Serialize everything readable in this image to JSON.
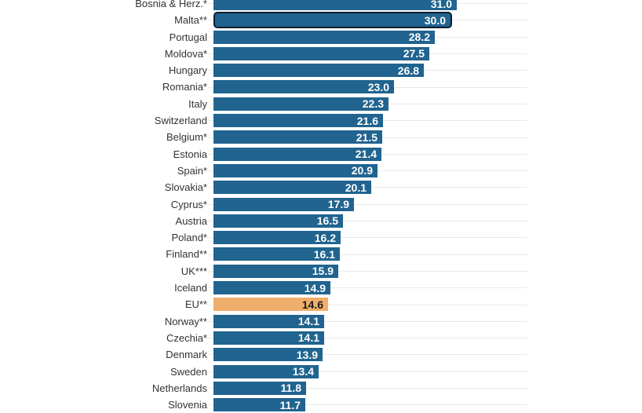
{
  "chart_data": {
    "type": "bar",
    "orientation": "horizontal",
    "title": "",
    "xlabel": "",
    "ylabel": "",
    "legend": "none",
    "grid": "faint horizontal line at each row center",
    "clipping": "first row (Bosnia & Herz.*) clipped at top edge, last row (Slovenia) clipped at bottom edge",
    "categories": [
      "Bosnia & Herz.*",
      "Malta**",
      "Portugal",
      "Moldova*",
      "Hungary",
      "Romania*",
      "Italy",
      "Switzerland",
      "Belgium*",
      "Estonia",
      "Spain*",
      "Slovakia*",
      "Cyprus*",
      "Austria",
      "Poland*",
      "Finland**",
      "UK***",
      "Iceland",
      "EU**",
      "Norway**",
      "Czechia*",
      "Denmark",
      "Sweden",
      "Netherlands",
      "Slovenia"
    ],
    "values": [
      31.0,
      30.0,
      28.2,
      27.5,
      26.8,
      23.0,
      22.3,
      21.6,
      21.5,
      21.4,
      20.9,
      20.1,
      17.9,
      16.5,
      16.2,
      16.1,
      15.9,
      14.9,
      14.6,
      14.1,
      14.1,
      13.9,
      13.4,
      11.8,
      11.7
    ],
    "value_labels": [
      "31.0",
      "30.0",
      "28.2",
      "27.5",
      "26.8",
      "23.0",
      "22.3",
      "21.6",
      "21.5",
      "21.4",
      "20.9",
      "20.1",
      "17.9",
      "16.5",
      "16.2",
      "16.1",
      "15.9",
      "14.9",
      "14.6",
      "14.1",
      "14.1",
      "13.9",
      "13.4",
      "11.8",
      "11.7"
    ],
    "selected_category": "Malta**",
    "accent_category": "EU**",
    "colors": {
      "bar": "#20648F",
      "accent_bar": "#EFAE6B",
      "selected_border": "#0B1E2D",
      "gridline": "#EAEAEA",
      "category_text": "#333333",
      "value_text": "#FFFFFF",
      "accent_value_text": "#1B1B1B"
    }
  }
}
